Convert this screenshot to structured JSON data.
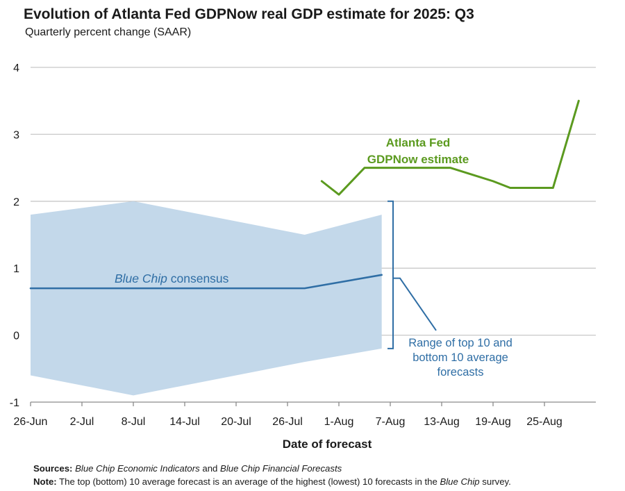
{
  "title": "Evolution of Atlanta Fed GDPNow real GDP estimate for 2025: Q3",
  "subtitle": "Quarterly percent change (SAAR)",
  "chart_data": {
    "type": "line",
    "xlabel": "Date of forecast",
    "ylabel": "",
    "ylim": [
      -1,
      4
    ],
    "yticks": [
      -1,
      0,
      1,
      2,
      3,
      4
    ],
    "grid": true,
    "x_ticks": [
      "26-Jun",
      "2-Jul",
      "8-Jul",
      "14-Jul",
      "20-Jul",
      "26-Jul",
      "1-Aug",
      "7-Aug",
      "13-Aug",
      "19-Aug",
      "25-Aug"
    ],
    "x_domain": [
      "2025-06-26",
      "2025-08-31"
    ],
    "series": [
      {
        "name": "Atlanta Fed GDPNow estimate",
        "color": "#5b9a1f",
        "x": [
          "2025-07-30",
          "2025-08-01",
          "2025-08-04",
          "2025-08-06",
          "2025-08-08",
          "2025-08-14",
          "2025-08-19",
          "2025-08-21",
          "2025-08-26",
          "2025-08-29"
        ],
        "y": [
          2.3,
          2.1,
          2.5,
          2.5,
          2.5,
          2.5,
          2.3,
          2.2,
          2.2,
          3.5
        ]
      },
      {
        "name": "Blue Chip consensus",
        "color": "#2f6ea5",
        "x": [
          "2025-06-26",
          "2025-07-28",
          "2025-08-06"
        ],
        "y": [
          0.7,
          0.7,
          0.9
        ]
      }
    ],
    "band": {
      "name": "Range of top 10 and bottom 10 average forecasts",
      "color": "#c3d8ea",
      "x": [
        "2025-06-26",
        "2025-07-08",
        "2025-07-28",
        "2025-08-06"
      ],
      "upper": [
        1.8,
        2.0,
        1.5,
        1.8
      ],
      "lower": [
        -0.6,
        -0.9,
        -0.4,
        -0.2
      ]
    },
    "annotations": {
      "gdpnow": [
        "Atlanta Fed",
        "GDPNow estimate"
      ],
      "bluechip_italic": "Blue Chip",
      "bluechip_rest": " consensus",
      "range": [
        "Range of top 10 and",
        "bottom 10 average",
        "forecasts"
      ]
    }
  },
  "footnotes": {
    "sources_label": "Sources:",
    "sources_it1": "Blue Chip Economic Indicators",
    "sources_mid": " and ",
    "sources_it2": "Blue Chip Financial Forecasts",
    "note_label": "Note:",
    "note_text": " The top (bottom) 10 average forecast is an average of the highest (lowest) 10 forecasts in the ",
    "note_it": "Blue Chip",
    "note_end": " survey."
  }
}
